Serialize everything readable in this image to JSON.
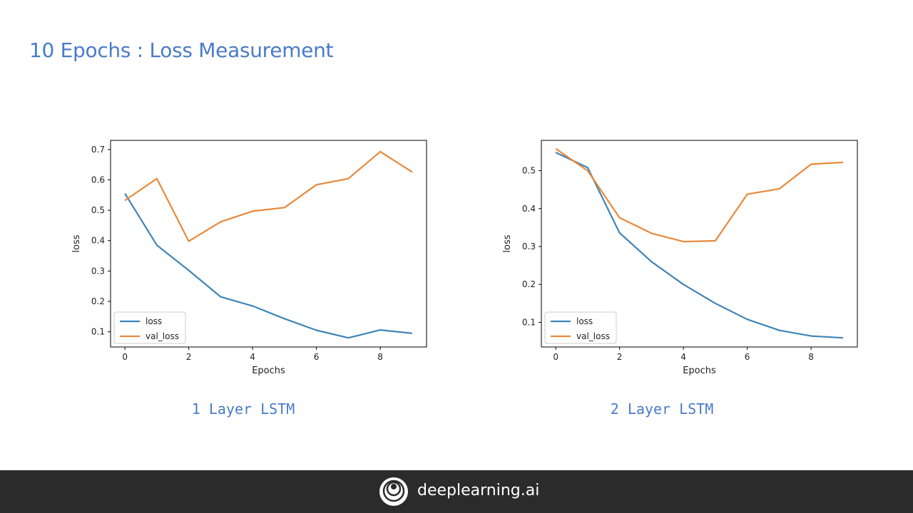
{
  "slide": {
    "title": "10 Epochs : Loss Measurement"
  },
  "footer": {
    "brand": "deeplearning.ai"
  },
  "colors": {
    "loss": "#3f84b5",
    "val_loss": "#e8893a",
    "title": "#4a7bc8",
    "footer_bg": "#2b2b2b"
  },
  "chart_data": [
    {
      "type": "line",
      "caption": "1 Layer LSTM",
      "xlabel": "Epochs",
      "ylabel": "loss",
      "x": [
        0,
        1,
        2,
        3,
        4,
        5,
        6,
        7,
        8,
        9
      ],
      "xticks": [
        0,
        2,
        4,
        6,
        8
      ],
      "yticks": [
        0.1,
        0.2,
        0.3,
        0.4,
        0.5,
        0.6,
        0.7
      ],
      "xlim": [
        -0.45,
        9.45
      ],
      "ylim": [
        0.05,
        0.73
      ],
      "legend": "lower-left",
      "grid": false,
      "series": [
        {
          "name": "loss",
          "color": "#3f84b5",
          "values": [
            0.555,
            0.385,
            0.302,
            0.215,
            0.185,
            0.143,
            0.105,
            0.08,
            0.106,
            0.095
          ]
        },
        {
          "name": "val_loss",
          "color": "#e8893a",
          "values": [
            0.532,
            0.604,
            0.398,
            0.462,
            0.497,
            0.509,
            0.584,
            0.604,
            0.693,
            0.626
          ]
        }
      ]
    },
    {
      "type": "line",
      "caption": "2 Layer LSTM",
      "xlabel": "Epochs",
      "ylabel": "loss",
      "x": [
        0,
        1,
        2,
        3,
        4,
        5,
        6,
        7,
        8,
        9
      ],
      "xticks": [
        0,
        2,
        4,
        6,
        8
      ],
      "yticks": [
        0.1,
        0.2,
        0.3,
        0.4,
        0.5
      ],
      "xlim": [
        -0.45,
        9.45
      ],
      "ylim": [
        0.035,
        0.58
      ],
      "legend": "lower-left",
      "grid": false,
      "series": [
        {
          "name": "loss",
          "color": "#3f84b5",
          "values": [
            0.548,
            0.508,
            0.336,
            0.26,
            0.2,
            0.15,
            0.108,
            0.079,
            0.064,
            0.059
          ]
        },
        {
          "name": "val_loss",
          "color": "#e8893a",
          "values": [
            0.558,
            0.5,
            0.376,
            0.335,
            0.313,
            0.315,
            0.438,
            0.452,
            0.517,
            0.522
          ]
        }
      ]
    }
  ]
}
